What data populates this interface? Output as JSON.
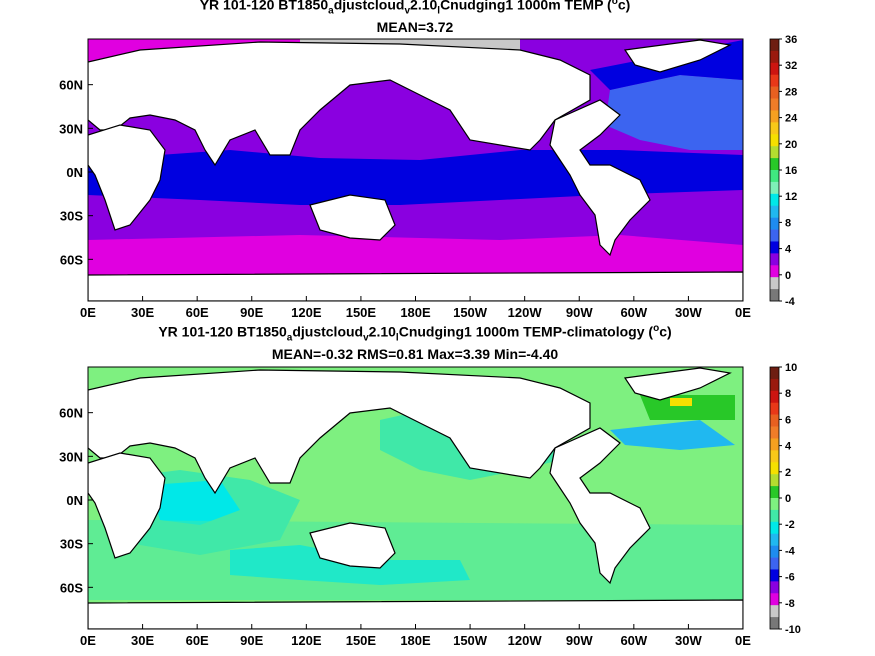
{
  "panels": [
    {
      "title_parts": {
        "a": "YR 101-120 BT1850",
        "b": "a",
        "c": "djustcloud",
        "d": "v",
        "e": "2.10",
        "f": "l",
        "g": "Cnudging1 1000m TEMP (",
        "h": "o",
        "i": "c)"
      },
      "stats": "MEAN=3.72",
      "colorbar": {
        "labels": [
          "36",
          "32",
          "28",
          "24",
          "20",
          "16",
          "12",
          "8",
          "4",
          "0",
          "-4"
        ],
        "colors": [
          "#6e1e12",
          "#9a1a0e",
          "#cc1510",
          "#e83818",
          "#e86020",
          "#f07c28",
          "#f5a020",
          "#f8c818",
          "#f5e000",
          "#b4dd30",
          "#28c828",
          "#40e880",
          "#7ef0b8",
          "#00e8e8",
          "#20b8f0",
          "#1e8cf0",
          "#3c64f0",
          "#0000e0",
          "#8a00e0",
          "#e000e0",
          "#c8c8c8",
          "#787878"
        ]
      }
    },
    {
      "title_parts": {
        "a": "YR 101-120 BT1850",
        "b": "a",
        "c": "djustcloud",
        "d": "v",
        "e": "2.10",
        "f": "l",
        "g": "Cnudging1 1000m TEMP-climatology (",
        "h": "o",
        "i": "c)"
      },
      "stats": "MEAN=-0.32   RMS=0.81   Max=3.39   Min=-4.40",
      "colorbar": {
        "labels": [
          "10",
          "8",
          "6",
          "4",
          "2",
          "0",
          "-2",
          "-4",
          "-6",
          "-8",
          "-10"
        ],
        "colors": [
          "#6e1e12",
          "#9a1a0e",
          "#cc1510",
          "#e83818",
          "#e86020",
          "#f07c28",
          "#f5a020",
          "#f8c818",
          "#f5e000",
          "#b4dd30",
          "#28c828",
          "#7ef080",
          "#40e8a8",
          "#00e8e8",
          "#20b8f0",
          "#1e8cf0",
          "#3c64f0",
          "#0000e0",
          "#8a00e0",
          "#e000e0",
          "#c8c8c8",
          "#787878"
        ]
      }
    }
  ],
  "axes": {
    "x_ticks": [
      "0E",
      "30E",
      "60E",
      "90E",
      "120E",
      "150E",
      "180E",
      "150W",
      "120W",
      "90W",
      "60W",
      "30W",
      "0E"
    ],
    "y_ticks": [
      "60N",
      "30N",
      "0N",
      "30S",
      "60S"
    ]
  },
  "colors": {
    "land": "#ffffff",
    "top_deep_ocean": "#8a00e0",
    "top_blue": "#0000e0",
    "top_magenta": "#e000e0",
    "top_light_blue": "#3c64f0",
    "bottom_green": "#7ef080",
    "bottom_mint": "#40e8a8",
    "bottom_cyan": "#00e8e8",
    "bottom_blue": "#20b8f0"
  }
}
